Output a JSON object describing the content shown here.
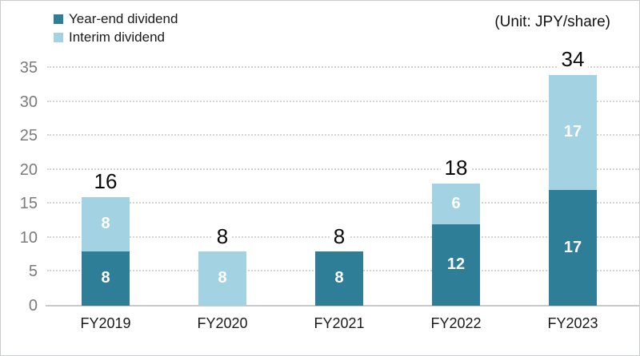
{
  "chart_data": {
    "type": "bar",
    "stacked": true,
    "unit_label": "(Unit: JPY/share)",
    "categories": [
      "FY2019",
      "FY2020",
      "FY2021",
      "FY2022",
      "FY2023"
    ],
    "series": [
      {
        "name": "Year-end dividend",
        "color": "#2f7e98",
        "values": [
          8,
          0,
          8,
          12,
          17
        ]
      },
      {
        "name": "Interim dividend",
        "color": "#a3d3e3",
        "values": [
          8,
          8,
          0,
          6,
          17
        ]
      }
    ],
    "totals": [
      16,
      8,
      8,
      18,
      34
    ],
    "ylim": [
      0,
      35
    ],
    "yticks": [
      0,
      5,
      10,
      15,
      20,
      25,
      30,
      35
    ],
    "grid": "horizontal-dotted",
    "legend_position": "top-left",
    "axis_tick_color": "#7b7b7b",
    "value_label_color": "#ffffff",
    "total_label_color": "#0b0b0b"
  }
}
